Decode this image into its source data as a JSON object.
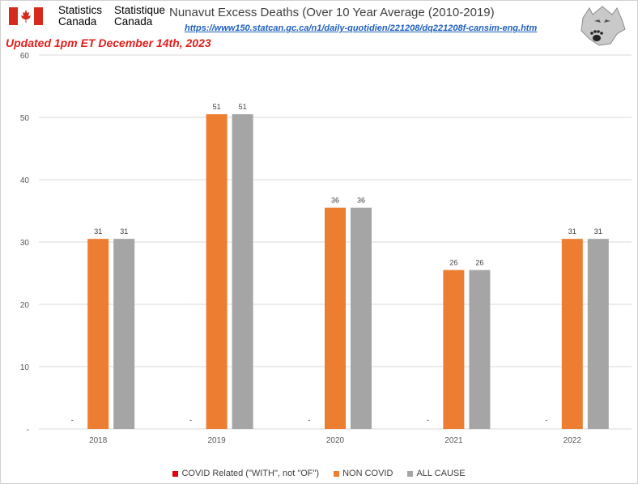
{
  "header": {
    "brand_en": "Statistics\nCanada",
    "brand_fr": "Statistique\nCanada",
    "title": "Nunavut Excess Deaths (Over 10 Year Average (2010-2019)",
    "source_url": "https://www150.statcan.gc.ca/n1/daily-quotidien/221208/dq221208f-cansim-eng.htm",
    "updated": "Updated 1pm ET December 14th, 2023"
  },
  "colors": {
    "covid": "#e3000f",
    "non_covid": "#ed7d31",
    "all_cause": "#a5a5a5",
    "updated_text": "#e0201c",
    "flag_red": "#d52b1e"
  },
  "icons": {
    "flag": "canada-flag-icon",
    "logo": "wolf-paw-logo-icon"
  },
  "chart_data": {
    "type": "bar",
    "categories": [
      "2018",
      "2019",
      "2020",
      "2021",
      "2022"
    ],
    "series": [
      {
        "name": "COVID Related (\"WITH\", not \"OF\")",
        "values": [
          0,
          0,
          0,
          0,
          0
        ],
        "labels": [
          "-",
          "-",
          "-",
          "-",
          "-"
        ]
      },
      {
        "name": "NON COVID",
        "values": [
          30.5,
          50.5,
          35.5,
          25.5,
          30.5
        ],
        "labels": [
          "31",
          "51",
          "36",
          "26",
          "31"
        ]
      },
      {
        "name": "ALL CAUSE",
        "values": [
          30.5,
          50.5,
          35.5,
          25.5,
          30.5
        ],
        "labels": [
          "31",
          "51",
          "36",
          "26",
          "31"
        ]
      }
    ],
    "ylim": [
      0,
      60
    ],
    "yticks": [
      0,
      10,
      20,
      30,
      40,
      50,
      60
    ],
    "ytick_labels": [
      "-",
      "10",
      "20",
      "30",
      "40",
      "50",
      "60"
    ],
    "grid": true,
    "legend_position": "bottom"
  }
}
